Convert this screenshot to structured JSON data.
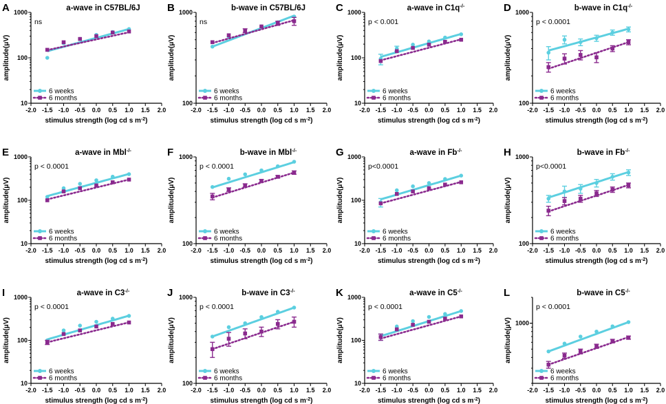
{
  "colors": {
    "weeks": "#5ccfe0",
    "months": "#8a2a8e",
    "axis": "#000000"
  },
  "chart_data": [
    {
      "type": "line",
      "panel": "A",
      "title": "a-wave in C57BL/6J",
      "stat": "ns",
      "xlabel": "stimulus strength (log cd s m",
      "xlabel_sup": "-2",
      "xlabel_end": ")",
      "ylabel": "amplitude(μV)",
      "ylim": [
        10,
        1000
      ],
      "yticks": [
        "10",
        "100",
        "1000"
      ],
      "xlim": [
        -2,
        2
      ],
      "xticks": [
        "-2.0",
        "-1.5",
        "-1.0",
        "-0.5",
        "0.0",
        "0.5",
        "1.0",
        "1.5",
        "2.0"
      ],
      "x": [
        -1.5,
        -1,
        -0.5,
        0,
        0.5,
        1
      ],
      "series": [
        {
          "name": "6 weeks",
          "values": [
            100,
            210,
            260,
            320,
            370,
            430
          ],
          "err": [
            0,
            0,
            0,
            0,
            0,
            0
          ],
          "fit": [
            140,
            430
          ]
        },
        {
          "name": "6 months",
          "values": [
            150,
            220,
            260,
            300,
            360,
            380
          ],
          "err": [
            0,
            0,
            0,
            0,
            0,
            0
          ],
          "fit": [
            148,
            365
          ]
        }
      ]
    },
    {
      "type": "line",
      "panel": "B",
      "title": "b-wave in C57BL/6J",
      "stat": "ns",
      "xlabel": "stimulus strength (log cd s m",
      "xlabel_sup": "-2",
      "xlabel_end": ")",
      "ylabel": "amplitude(μV)",
      "ylim": [
        100,
        1000
      ],
      "yticks": [
        "100",
        "1000"
      ],
      "xlim": [
        -2,
        2
      ],
      "xticks": [
        "-2.0",
        "-1.5",
        "-1.0",
        "-0.5",
        "0.0",
        "0.5",
        "1.0",
        "1.5",
        "2.0"
      ],
      "x": [
        -1.5,
        -1,
        -0.5,
        0,
        0.5,
        1
      ],
      "series": [
        {
          "name": "6 weeks",
          "values": [
            420,
            540,
            620,
            700,
            780,
            900
          ],
          "err": [
            0,
            0,
            0,
            0,
            0,
            0
          ],
          "fit": [
            420,
            920
          ]
        },
        {
          "name": "6 months",
          "values": [
            470,
            560,
            630,
            700,
            760,
            800
          ],
          "err": [
            0,
            0,
            30,
            0,
            40,
            80
          ],
          "fit": [
            460,
            820
          ]
        }
      ]
    },
    {
      "type": "line",
      "panel": "C",
      "title": "a-wave in C1q",
      "title_sup": "-/-",
      "stat": "p < 0.001",
      "xlabel": "stimulus strength (log cd s m",
      "xlabel_sup": "-2",
      "xlabel_end": ")",
      "ylabel": "amplitude(μV)",
      "ylim": [
        10,
        1000
      ],
      "yticks": [
        "10",
        "100",
        "1000"
      ],
      "xlim": [
        -2,
        2
      ],
      "xticks": [
        "-2.0",
        "-1.5",
        "-1.0",
        "-0.5",
        "0.0",
        "0.5",
        "1.0",
        "1.5",
        "2.0"
      ],
      "x": [
        -1.5,
        -1,
        -0.5,
        0,
        0.5,
        1
      ],
      "series": [
        {
          "name": "6 weeks",
          "values": [
            95,
            160,
            195,
            230,
            280,
            330
          ],
          "err": [
            25,
            20,
            0,
            0,
            0,
            0
          ],
          "fit": [
            105,
            335
          ]
        },
        {
          "name": "6 months",
          "values": [
            85,
            140,
            165,
            195,
            225,
            250
          ],
          "err": [
            0,
            0,
            0,
            0,
            0,
            0
          ],
          "fit": [
            88,
            255
          ]
        }
      ]
    },
    {
      "type": "line",
      "panel": "D",
      "title": "b-wave in C1q",
      "title_sup": "-/-",
      "stat": "p < 0.0001",
      "xlabel": "stimulus strength (log cd s m",
      "xlabel_sup": "-2",
      "xlabel_end": ")",
      "ylabel": "amplitude(μV)",
      "ylim": [
        100,
        1000
      ],
      "yticks": [
        "100",
        "1000"
      ],
      "xlim": [
        -2,
        2
      ],
      "xticks": [
        "-2.0",
        "-1.5",
        "-1.0",
        "-0.5",
        "0.0",
        "0.5",
        "1.0",
        "1.5",
        "2.0"
      ],
      "x": [
        -1.5,
        -1,
        -0.5,
        0,
        0.5,
        1
      ],
      "series": [
        {
          "name": "6 weeks",
          "values": [
            360,
            500,
            470,
            520,
            600,
            650
          ],
          "err": [
            60,
            50,
            40,
            40,
            40,
            40
          ],
          "fit": [
            380,
            660
          ]
        },
        {
          "name": "6 months",
          "values": [
            250,
            310,
            340,
            320,
            400,
            470
          ],
          "err": [
            30,
            40,
            40,
            40,
            30,
            30
          ],
          "fit": [
            240,
            470
          ]
        }
      ]
    },
    {
      "type": "line",
      "panel": "E",
      "title": "a-wave in Mbl",
      "title_sup": "-/-",
      "stat": "p < 0.0001",
      "xlabel": "stimulus strength (log cd s m",
      "xlabel_sup": "-2",
      "xlabel_end": ")",
      "ylabel": "amplitude(μV)",
      "ylim": [
        10,
        1000
      ],
      "yticks": [
        "10",
        "100",
        "1000"
      ],
      "xlim": [
        -2,
        2
      ],
      "xticks": [
        "-2.0",
        "-1.5",
        "-1.0",
        "-0.5",
        "0.0",
        "0.5",
        "1.0",
        "1.5",
        "2.0"
      ],
      "x": [
        -1.5,
        -1,
        -0.5,
        0,
        0.5,
        1
      ],
      "series": [
        {
          "name": "6 weeks",
          "values": [
            120,
            190,
            240,
            290,
            350,
            400
          ],
          "err": [
            0,
            0,
            0,
            0,
            0,
            0
          ],
          "fit": [
            125,
            405
          ]
        },
        {
          "name": "6 months",
          "values": [
            100,
            160,
            190,
            220,
            260,
            300
          ],
          "err": [
            0,
            0,
            0,
            0,
            0,
            0
          ],
          "fit": [
            105,
            300
          ]
        }
      ]
    },
    {
      "type": "line",
      "panel": "F",
      "title": "b-wave in Mbl",
      "title_sup": "-/-",
      "stat": "p < 0.0001",
      "xlabel": "stimulus strength (log cd s m",
      "xlabel_sup": "-2",
      "xlabel_end": ")",
      "ylabel": "amplitude(μV)",
      "ylim": [
        100,
        1000
      ],
      "yticks": [
        "100",
        "1000"
      ],
      "xlim": [
        -2,
        2
      ],
      "xticks": [
        "-2.0",
        "-1.5",
        "-1.0",
        "-0.5",
        "0.0",
        "0.5",
        "1.0",
        "1.5",
        "2.0"
      ],
      "x": [
        -1.5,
        -1,
        -0.5,
        0,
        0.5,
        1
      ],
      "series": [
        {
          "name": "6 weeks",
          "values": [
            450,
            560,
            630,
            700,
            780,
            880
          ],
          "err": [
            0,
            0,
            0,
            0,
            0,
            0
          ],
          "fit": [
            445,
            870
          ]
        },
        {
          "name": "6 months",
          "values": [
            350,
            420,
            470,
            530,
            590,
            660
          ],
          "err": [
            30,
            20,
            20,
            20,
            20,
            30
          ],
          "fit": [
            340,
            660
          ]
        }
      ]
    },
    {
      "type": "line",
      "panel": "G",
      "title": "a-wave in Fb",
      "title_sup": "-/-",
      "stat": "p<0.0001",
      "xlabel": "stimulus strength (log cd s m",
      "xlabel_sup": "-2",
      "xlabel_end": ")",
      "ylabel": "amplitude(μV)",
      "ylim": [
        10,
        1000
      ],
      "yticks": [
        "10",
        "100",
        "1000"
      ],
      "xlim": [
        -2,
        2
      ],
      "xticks": [
        "-2.0",
        "-1.5",
        "-1.0",
        "-0.5",
        "0.0",
        "0.5",
        "1.0",
        "1.5",
        "2.0"
      ],
      "x": [
        -1.5,
        -1,
        -0.5,
        0,
        0.5,
        1
      ],
      "series": [
        {
          "name": "6 weeks",
          "values": [
            90,
            170,
            210,
            250,
            310,
            370
          ],
          "err": [
            20,
            0,
            0,
            0,
            0,
            0
          ],
          "fit": [
            105,
            370
          ]
        },
        {
          "name": "6 months",
          "values": [
            85,
            140,
            160,
            190,
            230,
            260
          ],
          "err": [
            0,
            0,
            0,
            0,
            0,
            0
          ],
          "fit": [
            85,
            265
          ]
        }
      ]
    },
    {
      "type": "line",
      "panel": "H",
      "title": "b-wave in Fb",
      "title_sup": "-/-",
      "stat": "p<0.0001",
      "xlabel": "stimulus strength (log cd s m",
      "xlabel_sup": "-2",
      "xlabel_end": ")",
      "ylabel": "amplitude(μV)",
      "ylim": [
        100,
        1000
      ],
      "yticks": [
        "100",
        "1000"
      ],
      "xlim": [
        -2,
        2
      ],
      "xticks": [
        "-2.0",
        "-1.5",
        "-1.0",
        "-0.5",
        "0.0",
        "0.5",
        "1.0",
        "1.5",
        "2.0"
      ],
      "x": [
        -1.5,
        -1,
        -0.5,
        0,
        0.5,
        1
      ],
      "series": [
        {
          "name": "6 weeks",
          "values": [
            330,
            400,
            430,
            500,
            590,
            660
          ],
          "err": [
            30,
            60,
            50,
            50,
            50,
            50
          ],
          "fit": [
            340,
            670
          ]
        },
        {
          "name": "6 months",
          "values": [
            240,
            310,
            330,
            380,
            420,
            470
          ],
          "err": [
            30,
            30,
            30,
            30,
            30,
            30
          ],
          "fit": [
            235,
            475
          ]
        }
      ]
    },
    {
      "type": "line",
      "panel": "I",
      "title": "a-wave in C3",
      "title_sup": "-/-",
      "stat": "p < 0.0001",
      "xlabel": "stimulus strength (log cd s m",
      "xlabel_sup": "-2",
      "xlabel_end": ")",
      "ylabel": "amplitude(μV)",
      "ylim": [
        10,
        1000
      ],
      "yticks": [
        "10",
        "100",
        "1000"
      ],
      "xlim": [
        -2,
        2
      ],
      "xticks": [
        "-2.0",
        "-1.5",
        "-1.0",
        "-0.5",
        "0.0",
        "0.5",
        "1.0",
        "1.5",
        "2.0"
      ],
      "x": [
        -1.5,
        -1,
        -0.5,
        0,
        0.5,
        1
      ],
      "series": [
        {
          "name": "6 weeks",
          "values": [
            100,
            170,
            220,
            270,
            320,
            370
          ],
          "err": [
            0,
            0,
            0,
            0,
            0,
            0
          ],
          "fit": [
            105,
            375
          ]
        },
        {
          "name": "6 months",
          "values": [
            90,
            140,
            170,
            210,
            240,
            260
          ],
          "err": [
            10,
            0,
            0,
            0,
            0,
            0
          ],
          "fit": [
            90,
            262
          ]
        }
      ]
    },
    {
      "type": "line",
      "panel": "J",
      "title": "b-wave in C3",
      "title_sup": "-/-",
      "stat": "p < 0.0001",
      "xlabel": "stimulus strength (log cd s m",
      "xlabel_sup": "-2",
      "xlabel_end": ")",
      "ylabel": "amplitude(μV)",
      "ylim": [
        100,
        1000
      ],
      "yticks": [
        "100",
        "1000"
      ],
      "xlim": [
        -2,
        2
      ],
      "xticks": [
        "-2.0",
        "-1.5",
        "-1.0",
        "-0.5",
        "0.0",
        "0.5",
        "1.0",
        "1.5",
        "2.0"
      ],
      "x": [
        -1.5,
        -1,
        -0.5,
        0,
        0.5,
        1
      ],
      "series": [
        {
          "name": "6 weeks",
          "values": [
            350,
            450,
            500,
            590,
            680,
            760
          ],
          "err": [
            0,
            0,
            0,
            0,
            0,
            0
          ],
          "fit": [
            350,
            760
          ]
        },
        {
          "name": "6 months",
          "values": [
            250,
            330,
            380,
            400,
            490,
            520
          ],
          "err": [
            50,
            60,
            50,
            50,
            60,
            70
          ],
          "fit": [
            250,
            520
          ]
        }
      ]
    },
    {
      "type": "line",
      "panel": "K",
      "title": "a-wave in C5",
      "title_sup": "-/-",
      "stat": "p < 0.0001",
      "xlabel": "stimulus strength (log cd s m",
      "xlabel_sup": "-2",
      "xlabel_end": ")",
      "ylabel": "amplitude(μV)",
      "ylim": [
        10,
        1000
      ],
      "yticks": [
        "10",
        "100",
        "1000"
      ],
      "xlim": [
        -2,
        2
      ],
      "xticks": [
        "-2.0",
        "-1.5",
        "-1.0",
        "-0.5",
        "0.0",
        "0.5",
        "1.0",
        "1.5",
        "2.0"
      ],
      "x": [
        -1.5,
        -1,
        -0.5,
        0,
        0.5,
        1
      ],
      "series": [
        {
          "name": "6 weeks",
          "values": [
            120,
            210,
            280,
            350,
            410,
            480
          ],
          "err": [
            20,
            0,
            0,
            0,
            0,
            0
          ],
          "fit": [
            125,
            480
          ]
        },
        {
          "name": "6 months",
          "values": [
            120,
            180,
            230,
            270,
            320,
            360
          ],
          "err": [
            20,
            0,
            0,
            0,
            0,
            0
          ],
          "fit": [
            110,
            360
          ]
        }
      ]
    },
    {
      "type": "line",
      "panel": "L",
      "title": "b-wave in C5",
      "title_sup": "-/-",
      "stat": "p < 0.0001",
      "xlabel": "stimulus strength (log cd s m",
      "xlabel_sup": "-2",
      "xlabel_end": ")",
      "ylabel": "amplitude(μV)",
      "ylim": [
        200,
        2000
      ],
      "yticks": [
        "1000"
      ],
      "xlim": [
        -2,
        2
      ],
      "xticks": [
        "-2.0",
        "-1.5",
        "-1.0",
        "-0.5",
        "0.0",
        "0.5",
        "1.0",
        "1.5",
        "2.0"
      ],
      "x": [
        -1.5,
        -1,
        -0.5,
        0,
        0.5,
        1
      ],
      "series": [
        {
          "name": "6 weeks",
          "values": [
            470,
            580,
            700,
            800,
            920,
            1030
          ],
          "err": [
            0,
            0,
            0,
            0,
            0,
            0
          ],
          "fit": [
            470,
            1030
          ]
        },
        {
          "name": "6 months",
          "values": [
            330,
            420,
            470,
            540,
            620,
            680
          ],
          "err": [
            30,
            30,
            30,
            30,
            30,
            30
          ],
          "fit": [
            330,
            690
          ]
        }
      ]
    }
  ]
}
